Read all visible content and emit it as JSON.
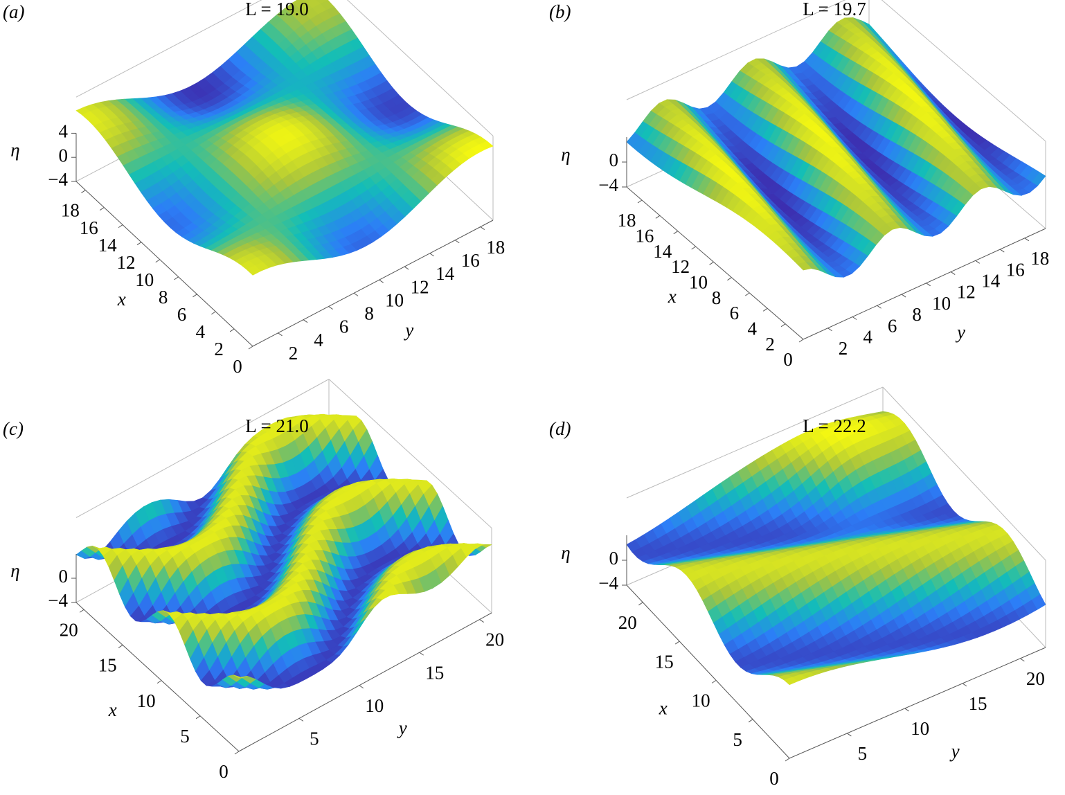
{
  "chart_data": [
    {
      "type": "surface",
      "panel_label": "(a)",
      "title": "L = 19.0",
      "xlabel": "x",
      "ylabel": "y",
      "zlabel": "η",
      "xlim": [
        0,
        19
      ],
      "ylim": [
        0,
        19
      ],
      "zlim": [
        -4,
        4
      ],
      "xticks": [
        0,
        2,
        4,
        6,
        8,
        10,
        12,
        14,
        16,
        18
      ],
      "yticks": [
        2,
        4,
        6,
        8,
        10,
        12,
        14,
        16,
        18
      ],
      "zticks": [
        {
          "value": -4,
          "label": "−4"
        },
        0,
        4
      ]
    },
    {
      "type": "surface",
      "panel_label": "(b)",
      "title": "L = 19.7",
      "xlabel": "x",
      "ylabel": "y",
      "zlabel": "η",
      "xlim": [
        0,
        19.7
      ],
      "ylim": [
        0,
        19.7
      ],
      "zlim": [
        -4,
        4
      ],
      "xticks": [
        0,
        2,
        4,
        6,
        8,
        10,
        12,
        14,
        16,
        18
      ],
      "yticks": [
        2,
        4,
        6,
        8,
        10,
        12,
        14,
        16,
        18
      ],
      "zticks": [
        {
          "value": -4,
          "label": "−4"
        },
        0
      ]
    },
    {
      "type": "surface",
      "panel_label": "(c)",
      "title": "L = 21.0",
      "xlabel": "x",
      "ylabel": "y",
      "zlabel": "η",
      "xlim": [
        0,
        21
      ],
      "ylim": [
        0,
        21
      ],
      "zlim": [
        -4,
        4
      ],
      "xticks": [
        0,
        5,
        10,
        15,
        20
      ],
      "yticks": [
        5,
        10,
        15,
        20
      ],
      "zticks": [
        {
          "value": -4,
          "label": "−4"
        },
        0
      ]
    },
    {
      "type": "surface",
      "panel_label": "(d)",
      "title": "L = 22.2",
      "xlabel": "x",
      "ylabel": "y",
      "zlabel": "η",
      "xlim": [
        0,
        22.2
      ],
      "ylim": [
        0,
        22.2
      ],
      "zlim": [
        -4,
        4
      ],
      "xticks": [
        0,
        5,
        10,
        15,
        20
      ],
      "yticks": [
        5,
        10,
        15,
        20
      ],
      "zticks": [
        {
          "value": -4,
          "label": "−4"
        },
        0
      ]
    }
  ]
}
